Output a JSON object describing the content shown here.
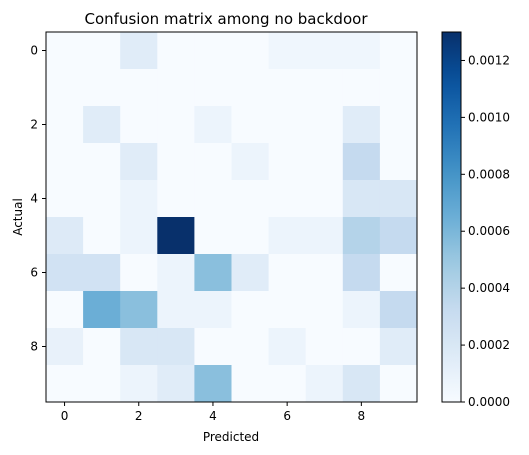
{
  "chart_data": {
    "type": "heatmap",
    "title": "Confusion matrix among no backdoor",
    "xlabel": "Predicted",
    "ylabel": "Actual",
    "x_categories": [
      0,
      1,
      2,
      3,
      4,
      5,
      6,
      7,
      8,
      9
    ],
    "y_categories": [
      0,
      1,
      2,
      3,
      4,
      5,
      6,
      7,
      8,
      9
    ],
    "xticks": [
      "0",
      "2",
      "4",
      "6",
      "8"
    ],
    "yticks": [
      "0",
      "2",
      "4",
      "6",
      "8"
    ],
    "colormap": "Blues",
    "colorbar": {
      "vmin": 0,
      "vmax": 0.0013,
      "ticks": [
        "0.0000",
        "0.0002",
        "0.0004",
        "0.0006",
        "0.0008",
        "0.0010",
        "0.0012"
      ]
    },
    "values": [
      [
        0,
        0,
        0.00015,
        0,
        0,
        0,
        5e-05,
        5e-05,
        5e-05,
        0
      ],
      [
        0,
        0,
        0,
        0,
        0,
        0,
        0,
        0,
        0,
        0
      ],
      [
        0,
        0.00015,
        0,
        0,
        7e-05,
        0,
        0,
        0,
        0.00015,
        0
      ],
      [
        0,
        0,
        0.00015,
        0,
        0,
        7e-05,
        0,
        0,
        0.00033,
        0
      ],
      [
        0,
        0,
        7e-05,
        0,
        0,
        0,
        0,
        0,
        0.0002,
        0.0002
      ],
      [
        0.00017,
        0,
        7e-05,
        0.0013,
        0,
        0,
        7e-05,
        7e-05,
        0.0004,
        0.00033
      ],
      [
        0.00025,
        0.00025,
        0,
        7e-05,
        0.00055,
        0.00015,
        0,
        0,
        0.00033,
        0
      ],
      [
        0,
        0.00065,
        0.00055,
        7e-05,
        7e-05,
        0,
        0,
        0,
        7e-05,
        0.00033
      ],
      [
        0.0001,
        0,
        0.0002,
        0.0002,
        0,
        0,
        7e-05,
        0,
        0,
        0.00015
      ],
      [
        0,
        0,
        7e-05,
        0.00015,
        0.00055,
        0,
        0,
        7e-05,
        0.0002,
        0
      ]
    ]
  }
}
